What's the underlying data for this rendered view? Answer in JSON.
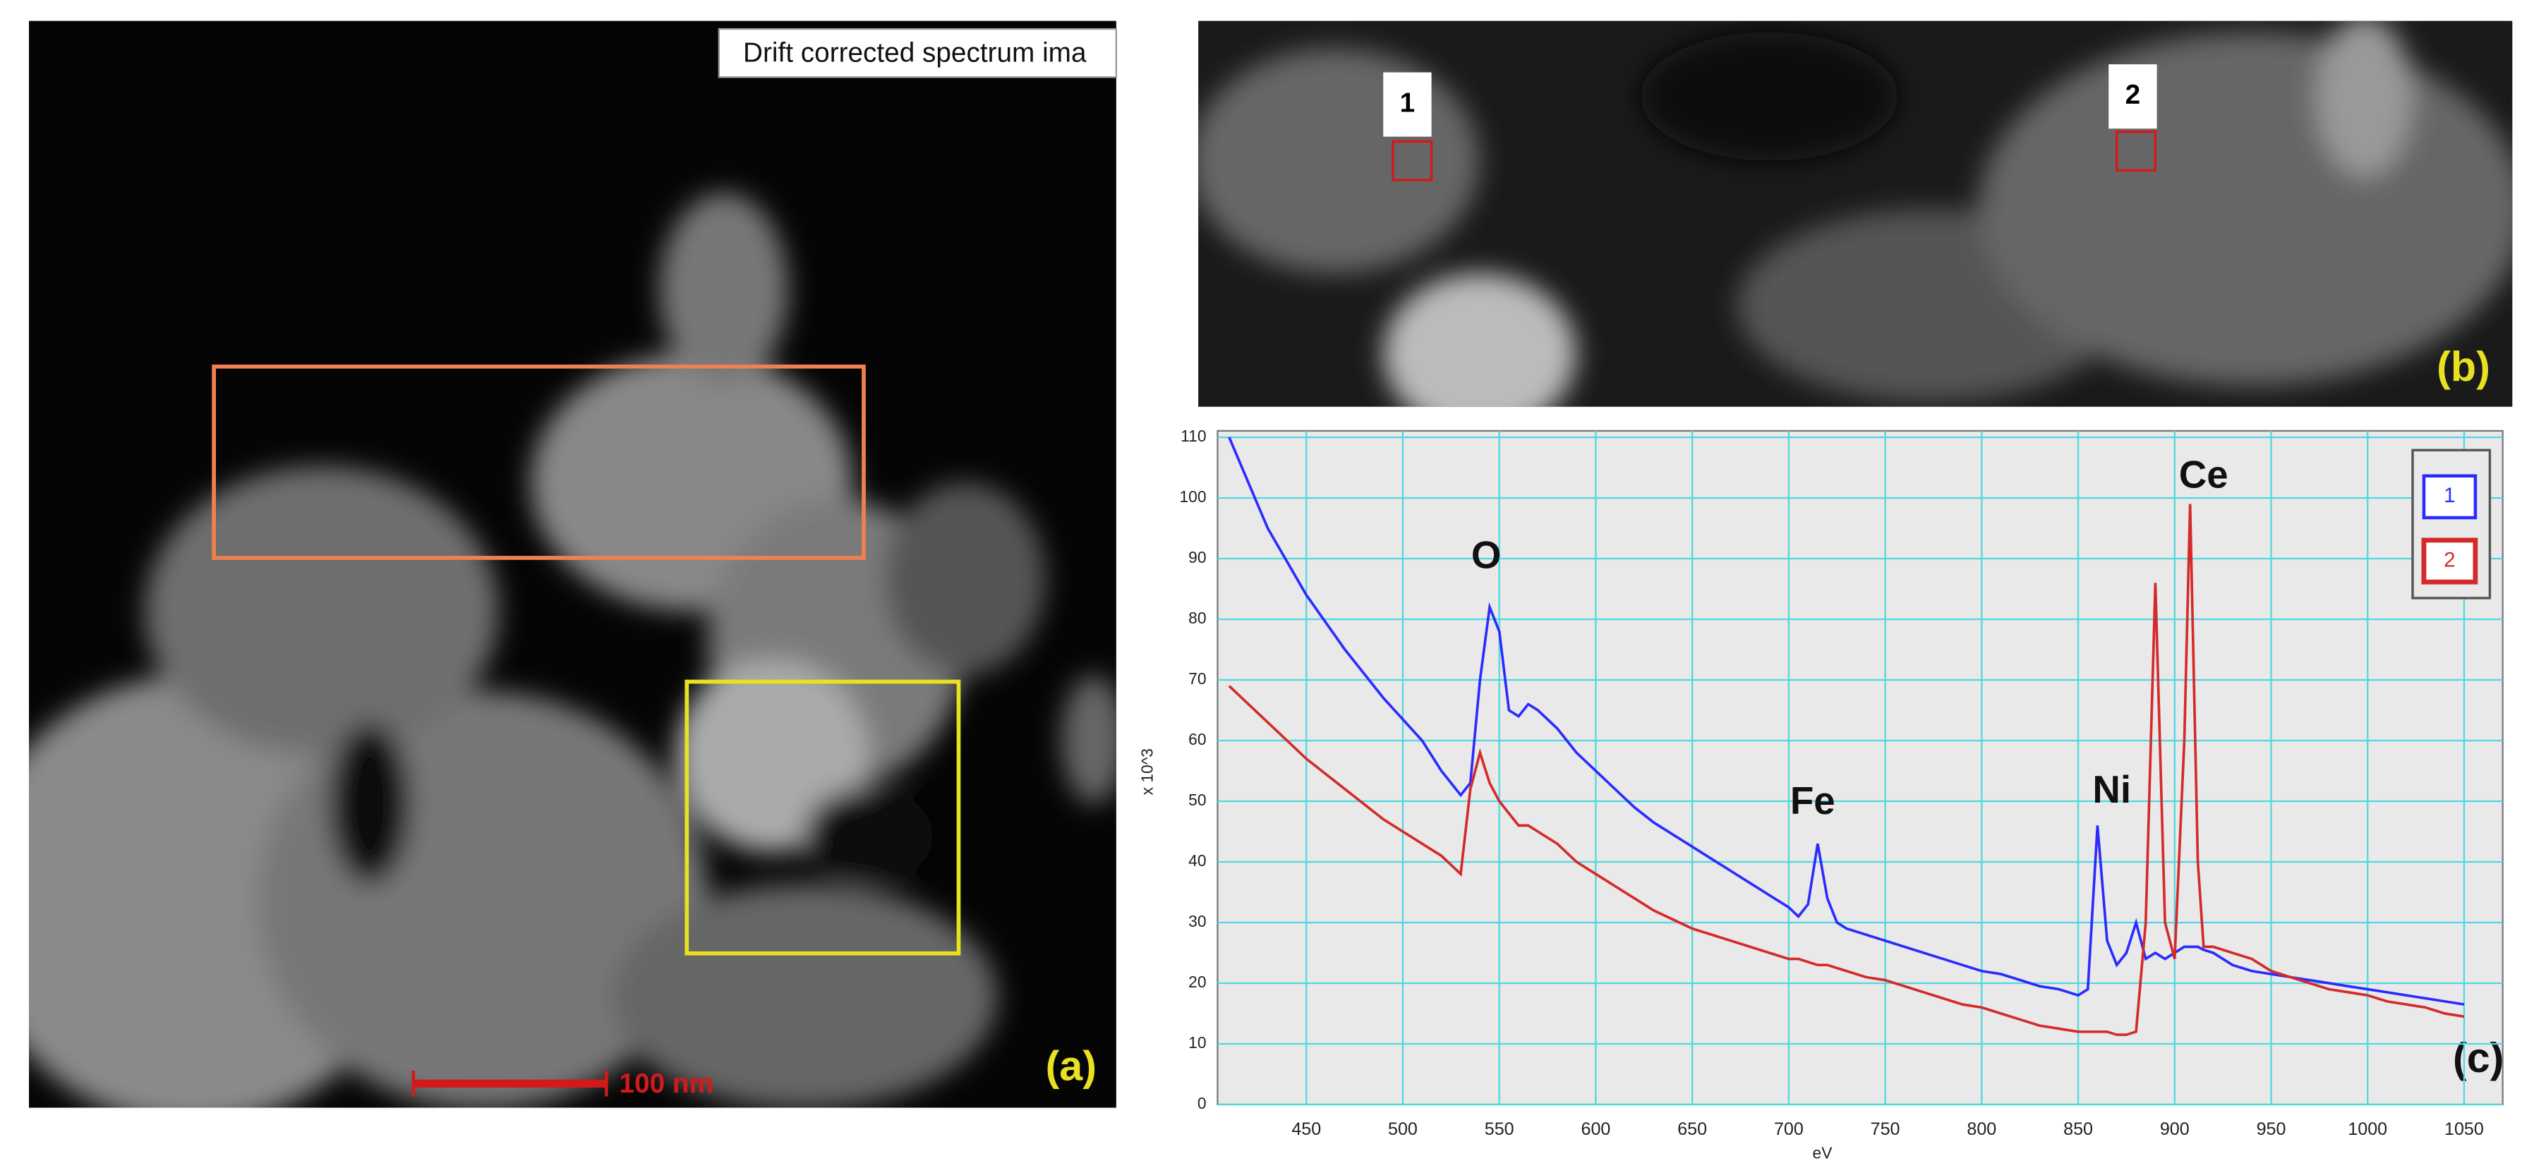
{
  "panel_a": {
    "caption": "Drift corrected spectrum ima",
    "scale_bar": "100 nm",
    "label": "(a)"
  },
  "panel_b": {
    "markers": [
      "1",
      "2"
    ],
    "label": "(b)"
  },
  "chart_data": {
    "type": "line",
    "label": "(c)",
    "x_label": "eV",
    "y_label": "x 10^3",
    "annotations": [
      "O",
      "Fe",
      "Ni",
      "Ce"
    ],
    "xlim": [
      404,
      1070
    ],
    "xticks": [
      450,
      500,
      550,
      600,
      650,
      700,
      750,
      800,
      850,
      900,
      950,
      1000,
      1050
    ],
    "ylim": [
      0,
      110
    ],
    "yticks": [
      0,
      10,
      20,
      30,
      40,
      50,
      60,
      70,
      80,
      90,
      100,
      110
    ],
    "grid": true,
    "legend": "top-right",
    "x": [
      410,
      430,
      450,
      470,
      490,
      510,
      520,
      530,
      535,
      540,
      545,
      550,
      555,
      560,
      565,
      570,
      580,
      590,
      600,
      610,
      620,
      630,
      640,
      650,
      660,
      670,
      680,
      690,
      700,
      705,
      710,
      715,
      720,
      725,
      730,
      740,
      750,
      760,
      770,
      780,
      790,
      800,
      810,
      820,
      830,
      840,
      850,
      855,
      860,
      865,
      870,
      875,
      880,
      885,
      890,
      895,
      900,
      905,
      908,
      912,
      915,
      920,
      930,
      940,
      950,
      960,
      970,
      980,
      990,
      1000,
      1010,
      1020,
      1030,
      1040,
      1050
    ],
    "series": [
      {
        "name": "1",
        "color": "#2b2bff",
        "values": [
          110,
          95,
          84,
          75,
          67,
          60,
          55,
          51,
          53,
          70,
          82,
          78,
          65,
          64,
          66,
          65,
          62,
          58,
          55,
          52,
          49,
          46.5,
          44.5,
          42.5,
          40.5,
          38.5,
          36.5,
          34.5,
          32.5,
          31,
          33,
          43,
          34,
          30,
          29,
          28,
          27,
          26,
          25,
          24,
          23,
          22,
          21.5,
          20.5,
          19.5,
          19,
          18,
          19,
          46,
          27,
          23,
          25,
          30,
          24,
          25,
          24,
          25,
          26,
          26,
          26,
          25.5,
          25,
          23,
          22,
          21.5,
          21,
          20.5,
          20,
          19.5,
          19,
          18.5,
          18,
          17.5,
          17,
          16.5
        ]
      },
      {
        "name": "2",
        "color": "#d42a2a",
        "values": [
          69,
          63,
          57,
          52,
          47,
          43,
          41,
          38,
          52,
          58,
          53,
          50,
          48,
          46,
          46,
          45,
          43,
          40,
          38,
          36,
          34,
          32,
          30.5,
          29,
          28,
          27,
          26,
          25,
          24,
          24,
          23.5,
          23,
          23,
          22.5,
          22,
          21,
          20.5,
          19.5,
          18.5,
          17.5,
          16.5,
          16,
          15,
          14,
          13,
          12.5,
          12,
          12,
          12,
          12,
          11.5,
          11.5,
          12,
          30,
          86,
          30,
          24,
          60,
          99,
          40,
          26,
          26,
          25,
          24,
          22,
          21,
          20,
          19,
          18.5,
          18,
          17,
          16.5,
          16,
          15,
          14.5
        ]
      }
    ]
  }
}
